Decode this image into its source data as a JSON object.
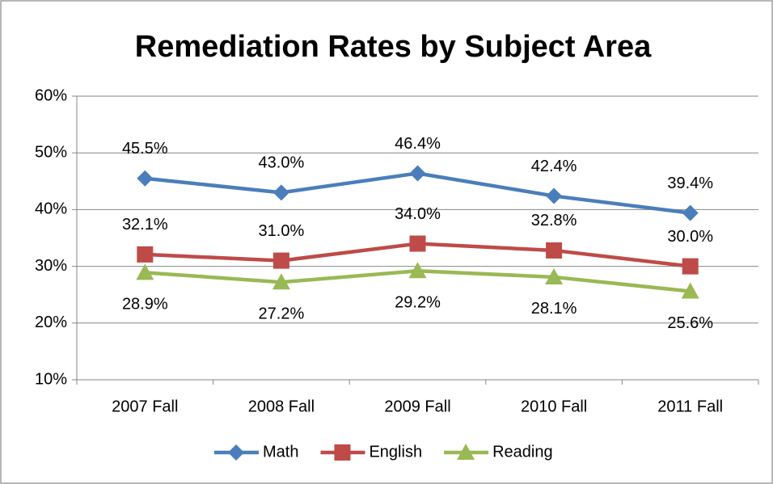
{
  "chart_data": {
    "type": "line",
    "title": "Remediation Rates by Subject Area",
    "categories": [
      "2007 Fall",
      "2008 Fall",
      "2009 Fall",
      "2010 Fall",
      "2011 Fall"
    ],
    "series": [
      {
        "name": "Math",
        "color": "#4a7ebb",
        "marker": "diamond",
        "label_position": "above",
        "values": [
          45.5,
          43.0,
          46.4,
          42.4,
          39.4
        ],
        "value_labels": [
          "45.5%",
          "43.0%",
          "46.4%",
          "42.4%",
          "39.4%"
        ]
      },
      {
        "name": "English",
        "color": "#be4b48",
        "marker": "square",
        "label_position": "above",
        "values": [
          32.1,
          31.0,
          34.0,
          32.8,
          30.0
        ],
        "value_labels": [
          "32.1%",
          "31.0%",
          "34.0%",
          "32.8%",
          "30.0%"
        ]
      },
      {
        "name": "Reading",
        "color": "#98b954",
        "marker": "triangle",
        "label_position": "below",
        "values": [
          28.9,
          27.2,
          29.2,
          28.1,
          25.6
        ],
        "value_labels": [
          "28.9%",
          "27.2%",
          "29.2%",
          "28.1%",
          "25.6%"
        ]
      }
    ],
    "ylim": [
      10,
      60
    ],
    "yticks": [
      {
        "value": 10,
        "label": "10%"
      },
      {
        "value": 20,
        "label": "20%"
      },
      {
        "value": 30,
        "label": "30%"
      },
      {
        "value": 40,
        "label": "40%"
      },
      {
        "value": 50,
        "label": "50%"
      },
      {
        "value": 60,
        "label": "60%"
      }
    ],
    "grid": true,
    "legend": "bottom"
  }
}
